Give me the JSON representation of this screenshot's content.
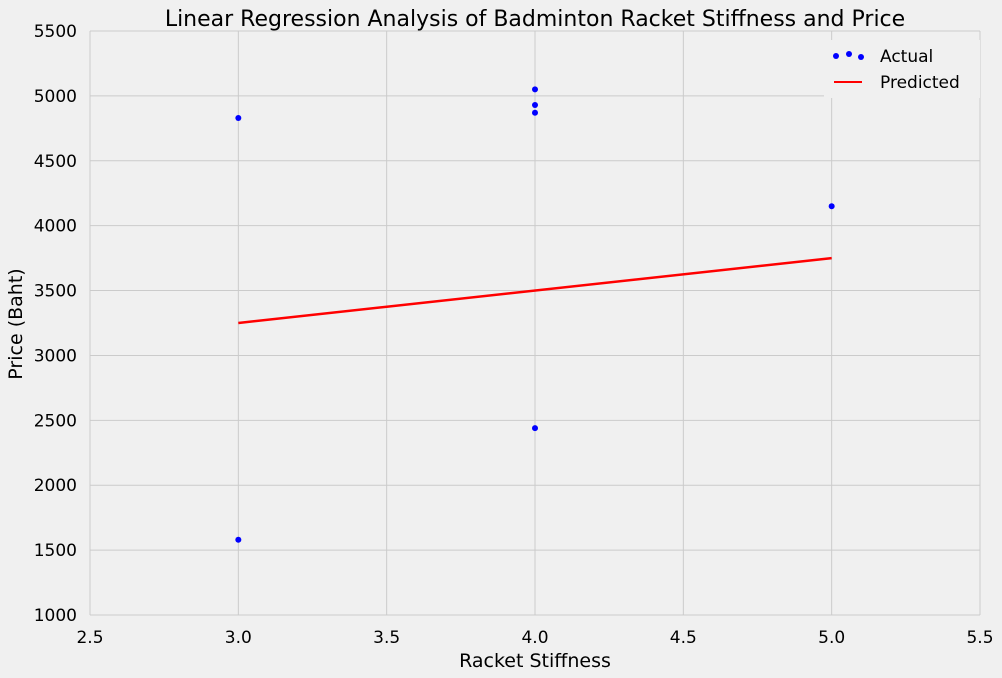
{
  "chart_data": {
    "type": "scatter",
    "title": "Linear Regression Analysis of Badminton Racket Stiffness and Price",
    "xlabel": "Racket Stiffness",
    "ylabel": "Price (Baht)",
    "xlim": [
      2.5,
      5.5
    ],
    "ylim": [
      1000,
      5500
    ],
    "xticks": [
      "2.5",
      "3.0",
      "3.5",
      "4.0",
      "4.5",
      "5.0",
      "5.5"
    ],
    "yticks": [
      "1000",
      "1500",
      "2000",
      "2500",
      "3000",
      "3500",
      "4000",
      "4500",
      "5000",
      "5500"
    ],
    "grid": true,
    "legend_position": "top-right",
    "series": [
      {
        "name": "Actual",
        "kind": "scatter",
        "color": "#0000ff",
        "points": [
          {
            "x": 3.0,
            "y": 4830
          },
          {
            "x": 3.0,
            "y": 1580
          },
          {
            "x": 4.0,
            "y": 5050
          },
          {
            "x": 4.0,
            "y": 4930
          },
          {
            "x": 4.0,
            "y": 4870
          },
          {
            "x": 4.0,
            "y": 2440
          },
          {
            "x": 5.0,
            "y": 4150
          }
        ]
      },
      {
        "name": "Predicted",
        "kind": "line",
        "color": "#ff0000",
        "points": [
          {
            "x": 3.0,
            "y": 3250
          },
          {
            "x": 5.0,
            "y": 3750
          }
        ]
      }
    ]
  }
}
